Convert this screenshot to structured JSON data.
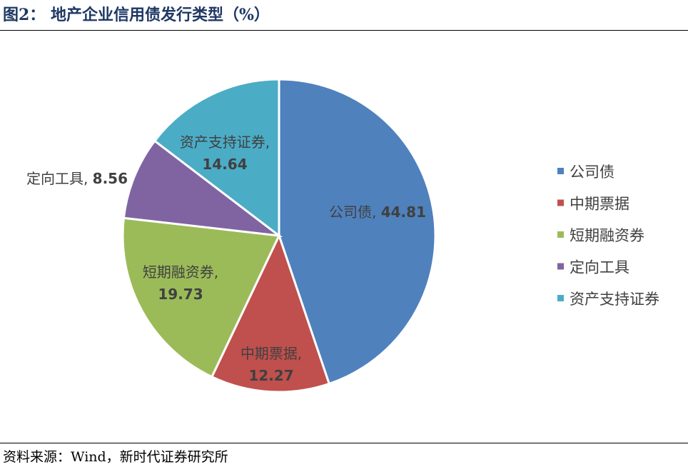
{
  "title": "图2：  地产企业信用债发行类型（%）",
  "source": "资料来源：Wind，新时代证券研究所",
  "chart_data": {
    "type": "pie",
    "slices": [
      {
        "name": "公司债",
        "value": 44.81,
        "color": "#4f81bd",
        "label_name": "公司债,",
        "label_value": "44.81"
      },
      {
        "name": "中期票据",
        "value": 12.27,
        "color": "#c0504d",
        "label_name": "中期票据,",
        "label_value": "12.27"
      },
      {
        "name": "短期融资券",
        "value": 19.73,
        "color": "#9bbb59",
        "label_name": "短期融资券,",
        "label_value": "19.73"
      },
      {
        "name": "定向工具",
        "value": 8.56,
        "color": "#8064a2",
        "label_name": "定向工具,",
        "label_value": "8.56"
      },
      {
        "name": "资产支持证券",
        "value": 14.64,
        "color": "#4bacc6",
        "label_name": "资产支持证券,",
        "label_value": "14.64"
      }
    ],
    "legend_position": "right"
  }
}
